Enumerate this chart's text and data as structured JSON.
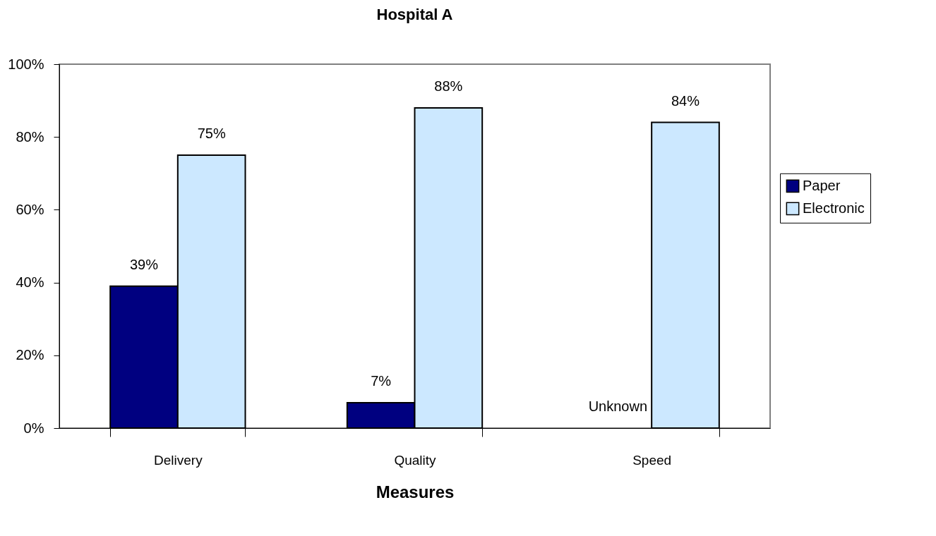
{
  "chart_data": {
    "type": "bar",
    "title": "Hospital A",
    "xlabel": "Measures",
    "categories": [
      "Delivery",
      "Quality",
      "Speed"
    ],
    "series": [
      {
        "name": "Paper",
        "color": "#000080",
        "values": [
          39,
          7,
          null
        ],
        "value_labels": [
          "39%",
          "7%",
          "Unknown"
        ]
      },
      {
        "name": "Electronic",
        "color": "#cce8ff",
        "values": [
          75,
          88,
          84
        ],
        "value_labels": [
          "75%",
          "88%",
          "84%"
        ]
      }
    ],
    "ylim": [
      0,
      100
    ],
    "yticks": [
      {
        "value": 0,
        "label": "0%"
      },
      {
        "value": 20,
        "label": "20%"
      },
      {
        "value": 40,
        "label": "40%"
      },
      {
        "value": 60,
        "label": "60%"
      },
      {
        "value": 80,
        "label": "80%"
      },
      {
        "value": 100,
        "label": "100%"
      }
    ],
    "grid": false,
    "legend": "right"
  }
}
